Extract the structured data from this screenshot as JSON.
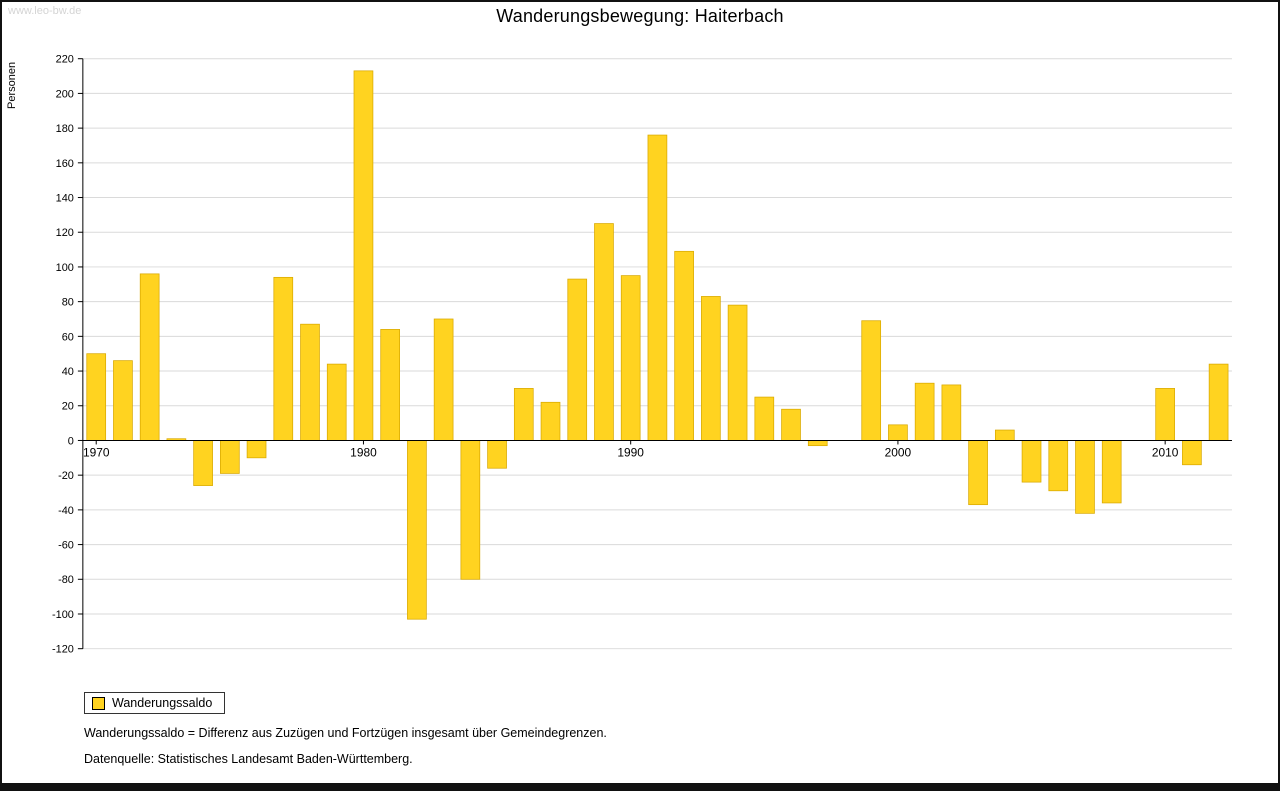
{
  "watermark": "www.leo-bw.de",
  "title": "Wanderungsbewegung: Haiterbach",
  "legend": {
    "label": "Wanderungssaldo"
  },
  "footnotes": [
    "Wanderungssaldo = Differenz aus Zuzügen und Fortzügen insgesamt über Gemeindegrenzen.",
    "Datenquelle: Statistisches Landesamt Baden-Württemberg."
  ],
  "chart_data": {
    "type": "bar",
    "title": "Wanderungsbewegung: Haiterbach",
    "series_name": "Wanderungssaldo",
    "xlabel": "",
    "ylabel": "Personen",
    "ylim": [
      -120,
      220
    ],
    "ytick_step": 20,
    "grid": true,
    "legend_position": "bottom-left",
    "bar_color": "#ffd320",
    "bar_border_color": "#d9a900",
    "x": [
      1970,
      1971,
      1972,
      1973,
      1974,
      1975,
      1976,
      1977,
      1978,
      1979,
      1980,
      1981,
      1982,
      1983,
      1984,
      1985,
      1986,
      1987,
      1988,
      1989,
      1990,
      1991,
      1992,
      1993,
      1994,
      1995,
      1996,
      1997,
      1998,
      1999,
      2000,
      2001,
      2002,
      2003,
      2004,
      2005,
      2006,
      2007,
      2008,
      2009,
      2010,
      2011,
      2012
    ],
    "values": [
      50,
      46,
      96,
      1,
      -26,
      -19,
      -10,
      94,
      67,
      44,
      213,
      64,
      -103,
      70,
      -80,
      -16,
      30,
      22,
      93,
      125,
      95,
      176,
      109,
      83,
      78,
      25,
      18,
      -3,
      0,
      69,
      9,
      33,
      32,
      -37,
      6,
      -24,
      -29,
      -42,
      -36,
      0,
      30,
      -14,
      44
    ],
    "xticks": [
      1970,
      1980,
      1990,
      2000,
      2010
    ]
  }
}
